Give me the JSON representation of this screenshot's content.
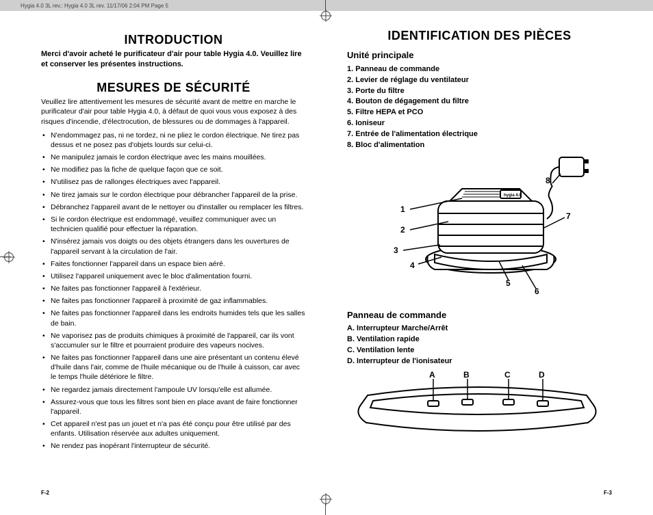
{
  "header": {
    "meta_line": "Hygia 4.0 3L rev.: Hygia 4.0 3L rev.  11/17/06  2:04 PM  Page 5"
  },
  "left": {
    "h_intro": "INTRODUCTION",
    "intro_text": "Merci d'avoir acheté le purificateur d'air pour table Hygia 4.0. Veuillez lire et conserver les présentes instructions.",
    "h_safety": "MESURES DE SÉCURITÉ",
    "safety_lead": "Veuillez lire attentivement les mesures de sécurité avant de mettre en marche le purificateur d'air pour table Hygia 4.0, à défaut de quoi vous vous exposez à des risques d'incendie, d'électrocution, de blessures ou de dommages à l'appareil.",
    "safety_items": [
      "N'endommagez pas, ni ne tordez, ni ne pliez le cordon électrique. Ne tirez pas dessus et ne posez pas d'objets lourds sur celui-ci.",
      "Ne manipulez jamais le cordon électrique avec les mains mouillées.",
      "Ne modifiez pas la fiche de quelque façon que ce soit.",
      "N'utilisez pas de rallonges électriques avec l'appareil.",
      "Ne tirez jamais sur le cordon électrique pour débrancher l'appareil de la prise.",
      "Débranchez l'appareil avant de le nettoyer ou d'installer ou remplacer les filtres.",
      "Si le cordon électrique est endommagé, veuillez communiquer avec un technicien qualifié pour effectuer la réparation.",
      "N'insérez jamais vos doigts ou des objets étrangers dans les ouvertures de l'appareil servant à la circulation de l'air.",
      "Faites fonctionner l'appareil dans un espace bien aéré.",
      "Utilisez l'appareil uniquement avec le bloc d'alimentation fourni.",
      "Ne faites pas fonctionner l'appareil à l'extérieur.",
      "Ne faites pas fonctionner l'appareil à proximité de gaz inflammables.",
      "Ne faites pas fonctionner l'appareil dans les endroits humides tels que les salles de bain.",
      "Ne vaporisez pas de produits chimiques à proximité de l'appareil, car ils vont s'accumuler sur le filtre et pourraient produire des vapeurs nocives.",
      "Ne faites pas fonctionner l'appareil dans une aire présentant un contenu élevé d'huile dans l'air, comme de l'huile mécanique ou de l'huile à cuisson, car avec le temps l'huile détériore le filtre.",
      "Ne regardez jamais directement l'ampoule UV lorsqu'elle est allumée.",
      "Assurez-vous que tous les filtres sont bien en place avant de faire fonctionner l'appareil.",
      "Cet appareil  n'est pas un jouet et n'a pas été conçu pour être utilisé par des enfants. Utilisation réservée aux adultes uniquement.",
      "Ne rendez pas inopérant l'interrupteur de sécurité."
    ]
  },
  "right": {
    "h_id": "IDENTIFICATION DES PIÈCES",
    "sub_main": "Unité principale",
    "parts_main": [
      "1.   Panneau de commande",
      "2.   Levier de réglage du ventilateur",
      "3.   Porte du filtre",
      "4.   Bouton de dégagement du filtre",
      "5.   Filtre HEPA et PCO",
      "6.   Ioniseur",
      "7.   Entrée de l'alimentation électrique",
      "8.   Bloc d'alimentation"
    ],
    "sub_panel": "Panneau de commande",
    "parts_panel": [
      "A.   Interrupteur Marche/Arrêt",
      "B.   Ventilation rapide",
      "C.   Ventilation lente",
      "D.   Interrupteur de l'ionisateur"
    ],
    "callouts": {
      "c1": "1",
      "c2": "2",
      "c3": "3",
      "c4": "4",
      "c5": "5",
      "c6": "6",
      "c7": "7",
      "c8": "8",
      "ca": "A",
      "cb": "B",
      "cc": "C",
      "cd": "D"
    }
  },
  "footer": {
    "left": "F-2",
    "right": "F-3"
  }
}
